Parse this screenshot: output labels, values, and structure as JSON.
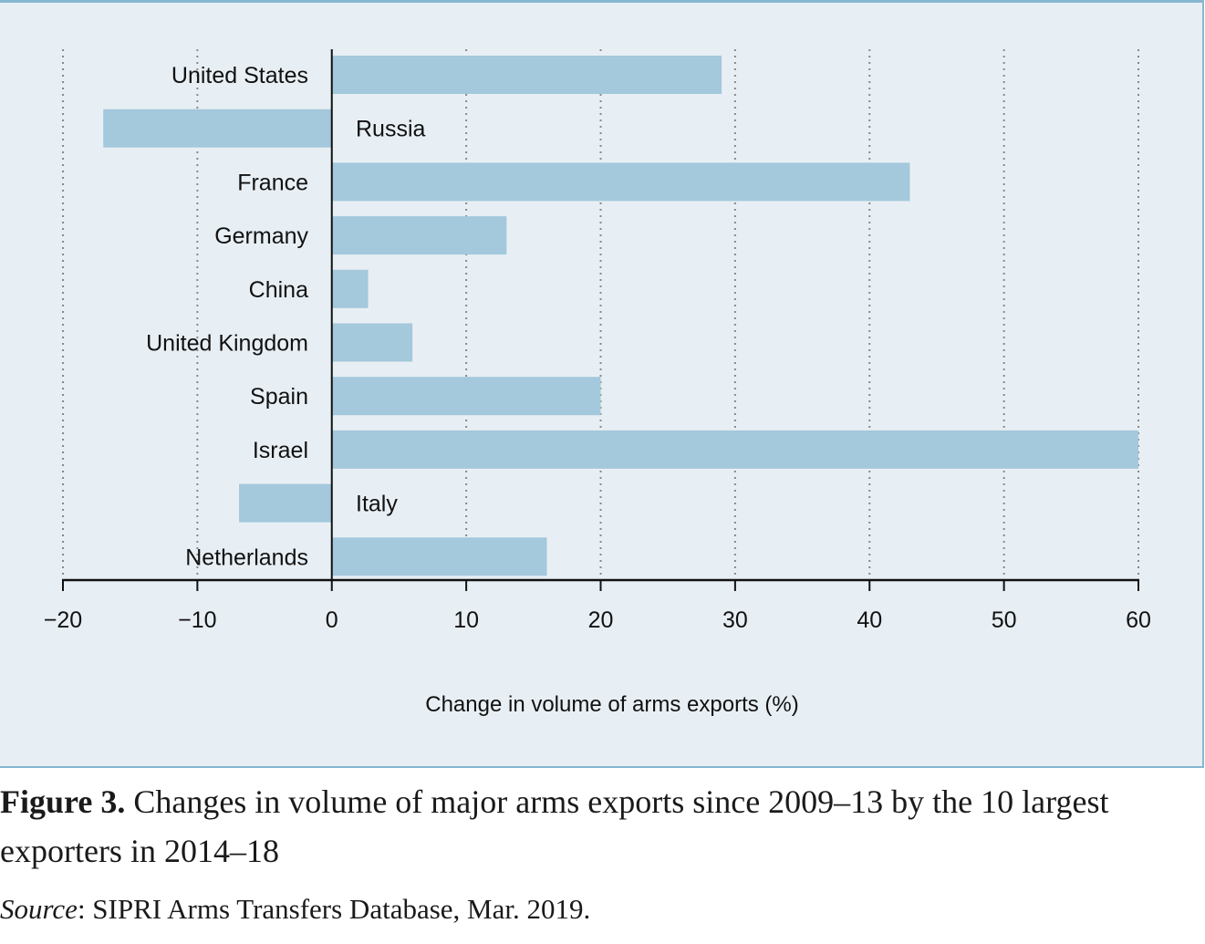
{
  "chart_data": {
    "type": "bar",
    "orientation": "horizontal",
    "categories": [
      "United States",
      "Russia",
      "France",
      "Germany",
      "China",
      "United Kingdom",
      "Spain",
      "Israel",
      "Italy",
      "Netherlands"
    ],
    "values": [
      29,
      -17,
      43,
      13,
      2.7,
      6,
      20,
      60,
      -6.9,
      16
    ],
    "xlabel": "Change in volume of arms exports (%)",
    "ylabel": "",
    "xlim": [
      -20,
      60
    ],
    "xticks": [
      -20,
      -10,
      0,
      10,
      20,
      30,
      40,
      50,
      60
    ],
    "xtick_labels": [
      "−20",
      "−10",
      "0",
      "10",
      "20",
      "30",
      "40",
      "50",
      "60"
    ],
    "grid": "vertical dotted",
    "bar_color": "#a4c8dc",
    "background_color": "#e8eff4"
  },
  "caption": {
    "figure_label": "Figure 3.",
    "text": "Changes in volume of major arms exports since 2009–13 by the 10 largest exporters in 2014–18"
  },
  "source": {
    "label": "Source",
    "text": ": SIPRI Arms Transfers Database, Mar. 2019."
  }
}
